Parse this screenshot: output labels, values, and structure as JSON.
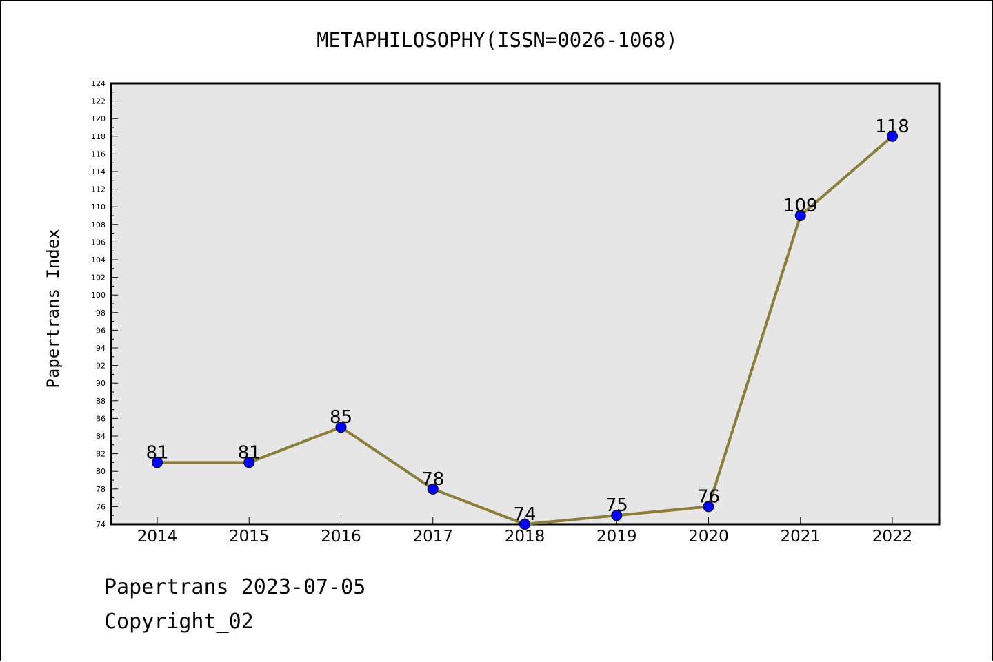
{
  "chart_data": {
    "type": "line",
    "title": "METAPHILOSOPHY(ISSN=0026-1068)",
    "xlabel": "",
    "ylabel": "Papertrans Index",
    "categories": [
      "2014",
      "2015",
      "2016",
      "2017",
      "2018",
      "2019",
      "2020",
      "2021",
      "2022"
    ],
    "series": [
      {
        "values": [
          81,
          81,
          85,
          78,
          74,
          75,
          76,
          109,
          118
        ],
        "color": "#8b7d3a"
      }
    ],
    "data_labels": [
      "81",
      "81",
      "85",
      "78",
      "74",
      "75",
      "76",
      "109",
      "118"
    ],
    "ylim": [
      74,
      124
    ],
    "yticks": [
      "74",
      "76",
      "78",
      "80",
      "82",
      "84",
      "86",
      "88",
      "90",
      "92",
      "94",
      "96",
      "98",
      "100",
      "102",
      "104",
      "106",
      "108",
      "110",
      "112",
      "114",
      "116",
      "118",
      "120",
      "122",
      "124"
    ],
    "marker_color": "#0000ff",
    "plot_background": "#e6e6e6",
    "grid": false,
    "legend": "none"
  },
  "footer": {
    "line1": "Papertrans 2023-07-05",
    "line2": "Copyright_02"
  }
}
